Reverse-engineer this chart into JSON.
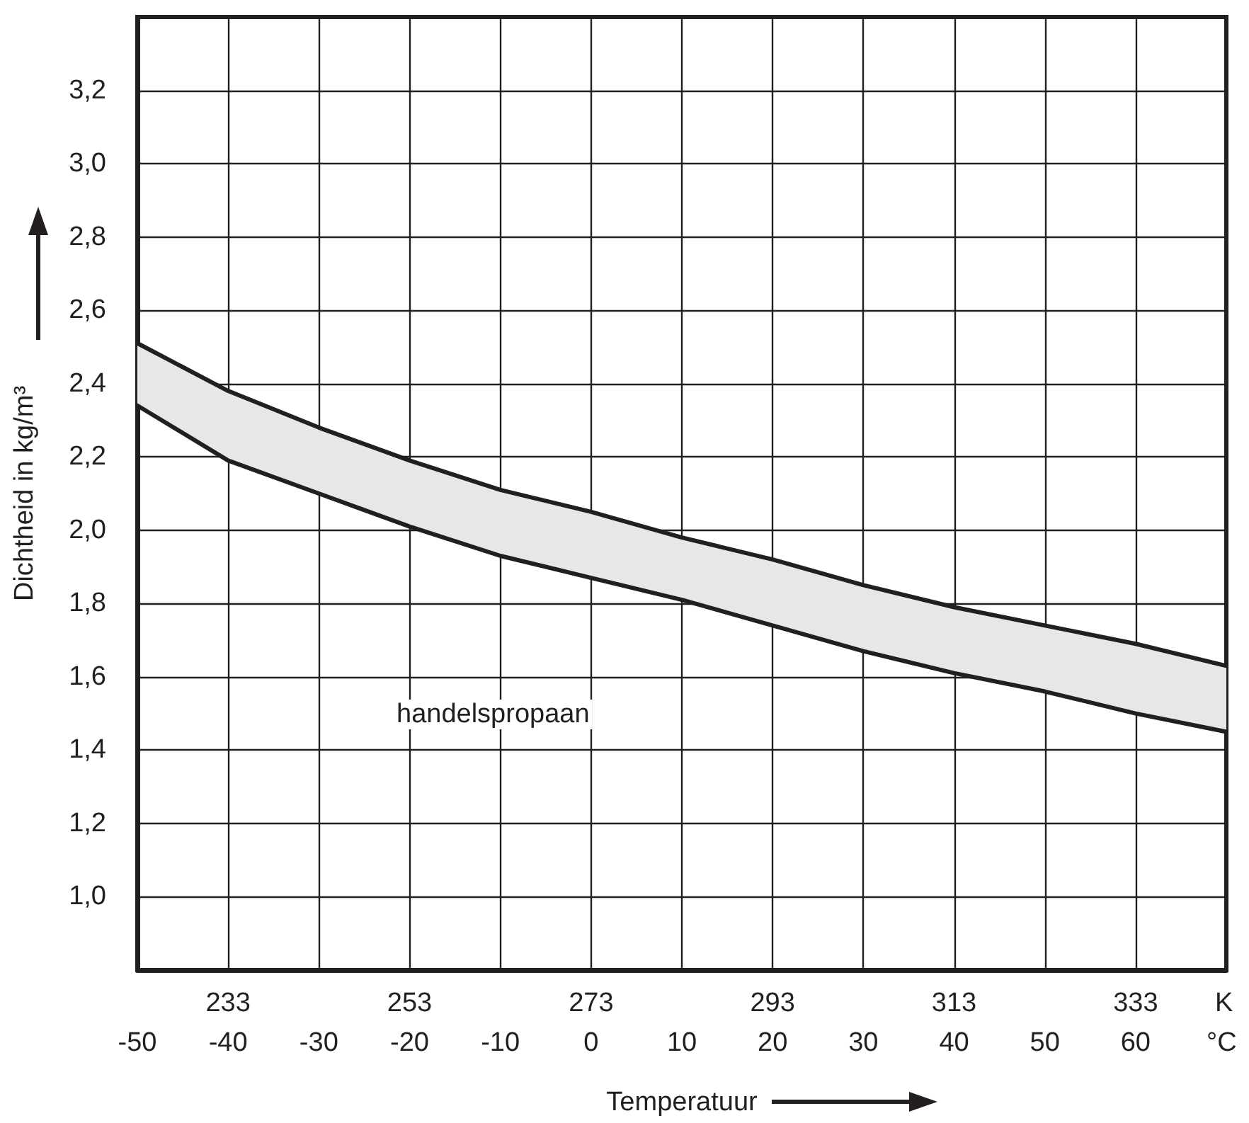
{
  "chart_data": {
    "type": "line",
    "xlabel": "Temperatuur",
    "ylabel": "Dichtheid in kg/m³",
    "x2label": "K",
    "annotations": [
      "handelspropaan",
      "°C"
    ],
    "x": [
      -50,
      -40,
      -30,
      -20,
      -10,
      0,
      10,
      20,
      30,
      40,
      50,
      60,
      70
    ],
    "series": [
      {
        "color": "#231f20",
        "values": [
          2.51,
          2.38,
          2.28,
          2.19,
          2.11,
          2.05,
          1.98,
          1.92,
          1.85,
          1.79,
          1.74,
          1.69,
          1.63
        ],
        "upper": [
          2.51,
          2.38,
          2.28,
          2.19,
          2.11,
          2.05,
          1.98,
          1.92,
          1.85,
          1.79,
          1.74,
          1.69,
          1.63
        ],
        "lower": [
          2.34,
          2.19,
          2.1,
          2.01,
          1.93,
          1.87,
          1.81,
          1.74,
          1.67,
          1.61,
          1.56,
          1.5,
          1.45
        ]
      },
      {
        "color": "#231f20",
        "values": [
          2.34,
          2.19,
          2.1,
          2.01,
          1.93,
          1.87,
          1.81,
          1.74,
          1.67,
          1.61,
          1.56,
          1.5,
          1.45
        ]
      }
    ],
    "xlim": [
      -50,
      70
    ],
    "xticks": [
      -50,
      -40,
      -30,
      -20,
      -10,
      0,
      10,
      20,
      30,
      40,
      50,
      60
    ],
    "x2lim": [
      223,
      343
    ],
    "x2ticks": [
      233,
      253,
      273,
      293,
      313,
      333
    ],
    "ylim": [
      0.8,
      3.4
    ],
    "yticks": [
      {
        "value": 1.0,
        "label": "1,0"
      },
      {
        "value": 1.2,
        "label": "1,2"
      },
      {
        "value": 1.4,
        "label": "1,4"
      },
      {
        "value": 1.6,
        "label": "1,6"
      },
      {
        "value": 1.8,
        "label": "1,8"
      },
      {
        "value": 2.0,
        "label": "2,0"
      },
      {
        "value": 2.2,
        "label": "2,2"
      },
      {
        "value": 2.4,
        "label": "2,4"
      },
      {
        "value": 2.6,
        "label": "2,6"
      },
      {
        "value": 2.8,
        "label": "2,8"
      },
      {
        "value": 3.0,
        "label": "3,0"
      },
      {
        "value": 3.2,
        "label": "3,2"
      }
    ],
    "grid": true,
    "marker": "none",
    "line_style": "solid"
  }
}
